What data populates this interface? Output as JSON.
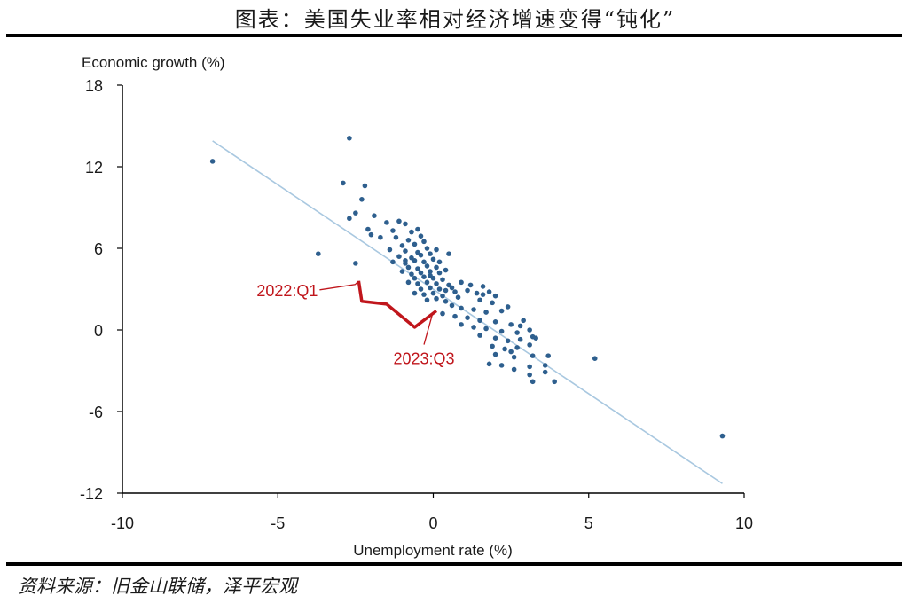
{
  "header": {
    "title": "图表：美国失业率相对经济增速变得“钝化”"
  },
  "footer": {
    "source": "资料来源：旧金山联储，泽平宏观"
  },
  "colors": {
    "points": "#2e5f8e",
    "trend": "#a9c8e0",
    "path": "#c0161c",
    "axis": "#000000"
  },
  "chart_data": {
    "type": "scatter",
    "title": "",
    "xlabel": "Unemployment rate (%)",
    "ylabel": "Economic growth (%)",
    "xlim": [
      -10,
      10
    ],
    "ylim": [
      -12,
      18
    ],
    "xticks": [
      -10,
      -5,
      0,
      5,
      10
    ],
    "yticks": [
      -12,
      -6,
      0,
      6,
      12,
      18
    ],
    "xtick_labels": [
      "-10",
      "-5",
      "0",
      "5",
      "10"
    ],
    "ytick_labels": [
      "-12",
      "-6",
      "0",
      "6",
      "12",
      "18"
    ],
    "grid": false,
    "trend_line": {
      "x": [
        -7.1,
        9.3
      ],
      "y": [
        13.9,
        -11.3
      ]
    },
    "points": [
      [
        -7.1,
        12.4
      ],
      [
        -2.7,
        14.1
      ],
      [
        -2.9,
        10.8
      ],
      [
        -2.5,
        8.6
      ],
      [
        -2.7,
        8.2
      ],
      [
        -2.2,
        10.6
      ],
      [
        -2.3,
        9.6
      ],
      [
        -2.1,
        7.4
      ],
      [
        -1.9,
        8.4
      ],
      [
        -2.0,
        7.0
      ],
      [
        -3.7,
        5.6
      ],
      [
        -2.5,
        4.9
      ],
      [
        -1.5,
        7.9
      ],
      [
        -1.3,
        7.3
      ],
      [
        -1.1,
        8.0
      ],
      [
        -0.9,
        7.8
      ],
      [
        -0.7,
        7.2
      ],
      [
        -0.5,
        7.4
      ],
      [
        -1.2,
        6.8
      ],
      [
        -0.8,
        6.6
      ],
      [
        -0.4,
        6.9
      ],
      [
        -1.0,
        6.2
      ],
      [
        -0.6,
        6.3
      ],
      [
        -0.3,
        6.5
      ],
      [
        -1.4,
        5.9
      ],
      [
        -0.9,
        5.8
      ],
      [
        -0.5,
        5.7
      ],
      [
        -0.2,
        6.0
      ],
      [
        -1.1,
        5.4
      ],
      [
        -0.7,
        5.3
      ],
      [
        -0.4,
        5.5
      ],
      [
        -0.1,
        5.6
      ],
      [
        0.1,
        5.9
      ],
      [
        -1.3,
        5.0
      ],
      [
        -0.9,
        4.9
      ],
      [
        -0.6,
        5.1
      ],
      [
        -0.3,
        5.0
      ],
      [
        0.0,
        5.2
      ],
      [
        0.2,
        5.0
      ],
      [
        -0.8,
        4.6
      ],
      [
        -0.5,
        4.5
      ],
      [
        -0.2,
        4.7
      ],
      [
        0.1,
        4.6
      ],
      [
        -1.0,
        4.3
      ],
      [
        -0.7,
        4.1
      ],
      [
        -0.4,
        4.2
      ],
      [
        -0.1,
        4.3
      ],
      [
        0.2,
        4.2
      ],
      [
        0.4,
        4.4
      ],
      [
        -0.6,
        3.8
      ],
      [
        -0.3,
        3.9
      ],
      [
        0.0,
        3.8
      ],
      [
        0.3,
        3.7
      ],
      [
        -0.8,
        3.5
      ],
      [
        -0.5,
        3.4
      ],
      [
        -0.2,
        3.5
      ],
      [
        0.1,
        3.4
      ],
      [
        0.5,
        3.3
      ],
      [
        -0.4,
        3.0
      ],
      [
        -0.1,
        3.1
      ],
      [
        0.2,
        3.0
      ],
      [
        0.6,
        3.1
      ],
      [
        -0.6,
        2.7
      ],
      [
        -0.3,
        2.6
      ],
      [
        0.0,
        2.7
      ],
      [
        0.3,
        2.5
      ],
      [
        0.7,
        2.8
      ],
      [
        -0.2,
        2.2
      ],
      [
        0.1,
        2.3
      ],
      [
        0.4,
        2.1
      ],
      [
        0.8,
        2.4
      ],
      [
        1.1,
        2.9
      ],
      [
        1.2,
        3.3
      ],
      [
        1.4,
        2.7
      ],
      [
        1.6,
        3.2
      ],
      [
        1.8,
        2.8
      ],
      [
        1.5,
        2.2
      ],
      [
        1.9,
        2.0
      ],
      [
        0.6,
        1.8
      ],
      [
        0.9,
        1.6
      ],
      [
        1.3,
        1.5
      ],
      [
        1.7,
        1.3
      ],
      [
        2.2,
        1.4
      ],
      [
        2.4,
        1.7
      ],
      [
        0.3,
        1.2
      ],
      [
        0.7,
        1.0
      ],
      [
        1.1,
        0.9
      ],
      [
        1.5,
        0.7
      ],
      [
        2.0,
        0.6
      ],
      [
        2.5,
        0.4
      ],
      [
        2.9,
        0.7
      ],
      [
        0.9,
        0.4
      ],
      [
        1.3,
        0.2
      ],
      [
        1.7,
        0.1
      ],
      [
        2.2,
        -0.1
      ],
      [
        2.7,
        -0.2
      ],
      [
        3.1,
        0.0
      ],
      [
        1.5,
        -0.4
      ],
      [
        2.0,
        -0.6
      ],
      [
        2.4,
        -0.8
      ],
      [
        2.8,
        -0.7
      ],
      [
        3.2,
        -0.5
      ],
      [
        1.9,
        -1.2
      ],
      [
        2.3,
        -1.4
      ],
      [
        2.7,
        -1.3
      ],
      [
        3.1,
        -1.1
      ],
      [
        2.0,
        -1.8
      ],
      [
        2.6,
        -2.0
      ],
      [
        3.2,
        -1.9
      ],
      [
        3.7,
        -1.9
      ],
      [
        1.8,
        -2.5
      ],
      [
        2.2,
        -2.6
      ],
      [
        2.6,
        -2.9
      ],
      [
        3.1,
        -2.7
      ],
      [
        3.6,
        -2.6
      ],
      [
        3.1,
        -3.3
      ],
      [
        3.6,
        -3.1
      ],
      [
        3.2,
        -3.8
      ],
      [
        3.9,
        -3.8
      ],
      [
        5.2,
        -2.1
      ],
      [
        9.3,
        -7.8
      ],
      [
        3.3,
        -0.6
      ],
      [
        0.5,
        5.6
      ],
      [
        -0.1,
        4.0
      ],
      [
        0.4,
        2.9
      ],
      [
        -0.9,
        5.1
      ],
      [
        0.9,
        3.5
      ],
      [
        1.6,
        2.6
      ],
      [
        2.0,
        2.5
      ],
      [
        2.8,
        0.3
      ],
      [
        2.5,
        -1.6
      ],
      [
        -1.7,
        6.8
      ]
    ],
    "path_2022_2023": {
      "x": [
        -2.4,
        -2.3,
        -1.5,
        -0.6,
        0.1
      ],
      "y": [
        3.6,
        2.1,
        1.9,
        0.2,
        1.4
      ]
    },
    "annotations": [
      {
        "text": "2022:Q1",
        "x": -2.4,
        "y": 3.6
      },
      {
        "text": "2023:Q3",
        "x": 0.1,
        "y": 1.4
      }
    ]
  }
}
